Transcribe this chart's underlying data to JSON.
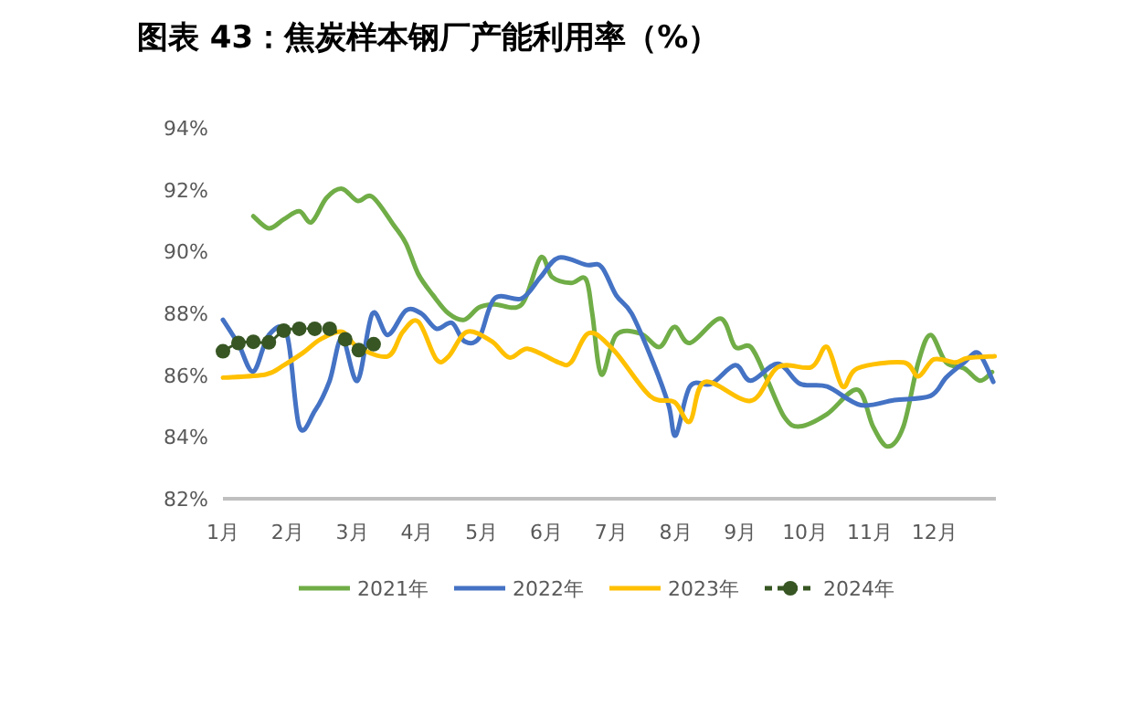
{
  "chart_data": {
    "type": "line",
    "title": "图表 43：焦炭样本钢厂产能利用率（%）",
    "xlim": [
      1,
      12.95
    ],
    "xticks": [
      {
        "value": 1,
        "label": "1月"
      },
      {
        "value": 2,
        "label": "2月"
      },
      {
        "value": 3,
        "label": "3月"
      },
      {
        "value": 4,
        "label": "4月"
      },
      {
        "value": 5,
        "label": "5月"
      },
      {
        "value": 6,
        "label": "6月"
      },
      {
        "value": 7,
        "label": "7月"
      },
      {
        "value": 8,
        "label": "8月"
      },
      {
        "value": 9,
        "label": "9月"
      },
      {
        "value": 10,
        "label": "10月"
      },
      {
        "value": 11,
        "label": "11月"
      },
      {
        "value": 12,
        "label": "12月"
      }
    ],
    "ylim": [
      82,
      94
    ],
    "yticks": [
      {
        "value": 82,
        "label": "82%"
      },
      {
        "value": 84,
        "label": "84%"
      },
      {
        "value": 86,
        "label": "86%"
      },
      {
        "value": 88,
        "label": "88%"
      },
      {
        "value": 90,
        "label": "90%"
      },
      {
        "value": 92,
        "label": "92%"
      },
      {
        "value": 94,
        "label": "94%"
      }
    ],
    "grid": false,
    "legend": "bottom",
    "marker": "none",
    "line_style": "solid",
    "series": [
      {
        "name": "2021年",
        "color": "#70ad47",
        "x": [
          1.47,
          1.71,
          1.94,
          2.18,
          2.37,
          2.6,
          2.84,
          3.08,
          3.31,
          3.64,
          3.83,
          4.02,
          4.25,
          4.49,
          4.73,
          4.96,
          5.2,
          5.62,
          5.91,
          6.09,
          6.38,
          6.61,
          6.71,
          6.85,
          7.08,
          7.46,
          7.75,
          7.98,
          8.22,
          8.69,
          8.92,
          9.16,
          9.4,
          9.68,
          9.92,
          10.34,
          10.81,
          11.05,
          11.28,
          11.52,
          11.75,
          11.94,
          12.18,
          12.46,
          12.7,
          12.89
        ],
        "values": [
          91.14,
          90.75,
          91.04,
          91.3,
          90.95,
          91.73,
          92.03,
          91.64,
          91.77,
          90.85,
          90.26,
          89.27,
          88.58,
          87.99,
          87.79,
          88.19,
          88.29,
          88.29,
          89.8,
          89.17,
          88.98,
          89.11,
          87.99,
          86.02,
          87.3,
          87.34,
          86.91,
          87.56,
          87.04,
          87.83,
          86.91,
          86.91,
          85.92,
          84.64,
          84.34,
          84.74,
          85.53,
          84.34,
          83.69,
          84.34,
          86.41,
          87.3,
          86.41,
          86.22,
          85.82,
          86.1
        ]
      },
      {
        "name": "2022年",
        "color": "#4472c4",
        "x": [
          1,
          1.24,
          1.47,
          1.71,
          1.99,
          2.18,
          2.42,
          2.65,
          2.84,
          3.08,
          3.31,
          3.55,
          3.83,
          4.07,
          4.3,
          4.54,
          4.73,
          4.96,
          5.2,
          5.62,
          5.91,
          6.19,
          6.61,
          6.85,
          7.08,
          7.32,
          7.65,
          7.89,
          8,
          8.22,
          8.55,
          8.92,
          9.16,
          9.58,
          9.92,
          10.34,
          10.86,
          11.38,
          11.94,
          12.18,
          12.46,
          12.68,
          12.91
        ],
        "values": [
          87.79,
          87,
          86.12,
          87.3,
          87.3,
          84.34,
          84.84,
          85.82,
          87.2,
          85.82,
          87.99,
          87.3,
          88.09,
          87.99,
          87.5,
          87.69,
          87.1,
          87.2,
          88.48,
          88.48,
          89.17,
          89.8,
          89.57,
          89.51,
          88.58,
          87.99,
          86.41,
          85.03,
          84.05,
          85.63,
          85.72,
          86.32,
          85.82,
          86.37,
          85.72,
          85.63,
          85.03,
          85.19,
          85.33,
          85.92,
          86.41,
          86.71,
          85.78
        ]
      },
      {
        "name": "2023年",
        "color": "#ffc000",
        "x": [
          1,
          1.66,
          1.94,
          2.23,
          2.51,
          2.84,
          3.08,
          3.55,
          3.78,
          4.02,
          4.3,
          4.49,
          4.77,
          5.15,
          5.43,
          5.72,
          6.19,
          6.38,
          6.66,
          7.04,
          7.6,
          7.98,
          8.22,
          8.45,
          9.16,
          9.58,
          10.1,
          10.34,
          10.58,
          10.81,
          11.52,
          11.75,
          11.99,
          12.32,
          12.51,
          12.93
        ],
        "values": [
          85.92,
          86.02,
          86.32,
          86.71,
          87.16,
          87.4,
          86.91,
          86.61,
          87.4,
          87.73,
          86.51,
          86.61,
          87.4,
          87.1,
          86.57,
          86.85,
          86.41,
          86.41,
          87.36,
          86.81,
          85.33,
          85.13,
          84.5,
          85.78,
          85.17,
          86.26,
          86.26,
          86.91,
          85.63,
          86.22,
          86.41,
          85.96,
          86.51,
          86.41,
          86.55,
          86.61
        ]
      },
      {
        "name": "2024年",
        "color": "#375623",
        "marker": "circle",
        "line_style": "dashed",
        "x": [
          1,
          1.24,
          1.47,
          1.71,
          1.94,
          2.18,
          2.42,
          2.65,
          2.89,
          3.1,
          3.33
        ],
        "values": [
          86.77,
          87.04,
          87.08,
          87.06,
          87.44,
          87.5,
          87.5,
          87.5,
          87.16,
          86.81,
          87
        ]
      }
    ]
  }
}
